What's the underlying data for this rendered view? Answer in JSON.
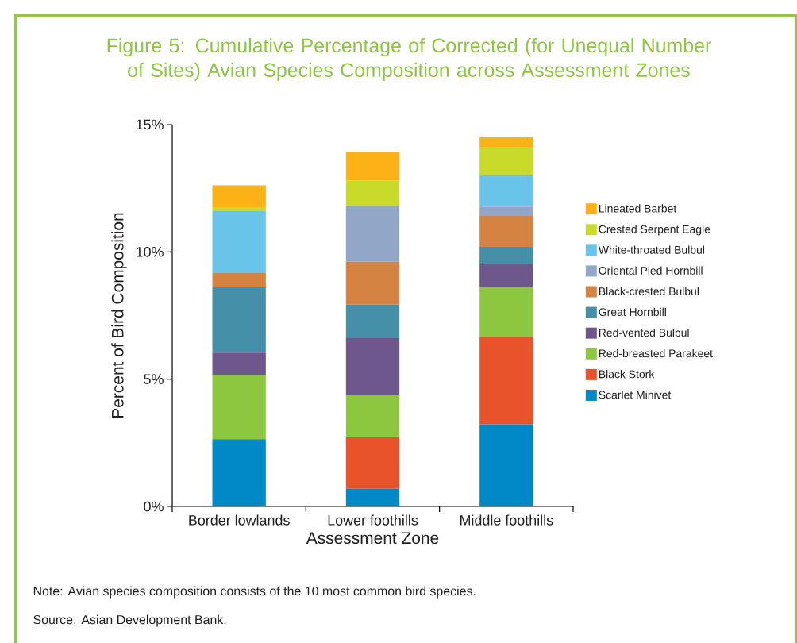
{
  "chart_data": {
    "type": "bar",
    "stacked": true,
    "title": "Figure 5: Cumulative Percentage of Corrected (for Unequal Number of Sites) Avian Species Composition across Assessment Zones",
    "xlabel": "Assessment Zone",
    "ylabel": "Percent of Bird Composition",
    "categories": [
      "Border lowlands",
      "Lower foothills",
      "Middle foothills"
    ],
    "ylim": [
      0,
      15
    ],
    "yticks": [
      {
        "value": 0,
        "label": "0%"
      },
      {
        "value": 5,
        "label": "5%"
      },
      {
        "value": 10,
        "label": "10%"
      },
      {
        "value": 15,
        "label": "15%"
      }
    ],
    "grid": false,
    "legend": "right",
    "series": [
      {
        "name": "Scarlet Minivet",
        "color": "#0088c7",
        "values": [
          2.64,
          0.69,
          3.23
        ]
      },
      {
        "name": "Black Stork",
        "color": "#e9532b",
        "values": [
          0,
          2.02,
          3.44
        ]
      },
      {
        "name": "Red-breasted Parakeet",
        "color": "#8dc63f",
        "values": [
          2.54,
          1.67,
          1.95
        ]
      },
      {
        "name": "Red-vented Bulbul",
        "color": "#6d578b",
        "values": [
          0.86,
          2.23,
          0.91
        ]
      },
      {
        "name": "Great Hornbill",
        "color": "#4590a8",
        "values": [
          2.58,
          1.32,
          0.67
        ]
      },
      {
        "name": "Black-crested Bulbul",
        "color": "#d58342",
        "values": [
          0.55,
          1.68,
          1.21
        ]
      },
      {
        "name": "Oriental Pied Hornbill",
        "color": "#92a6c8",
        "values": [
          0,
          2.2,
          0.37
        ]
      },
      {
        "name": "White-throated Bulbul",
        "color": "#69c4ea",
        "values": [
          2.45,
          0,
          1.23
        ]
      },
      {
        "name": "Crested Serpent Eagle",
        "color": "#c9da2b",
        "values": [
          0.14,
          0.99,
          1.12
        ]
      },
      {
        "name": "Lineated Barbet",
        "color": "#fcb216",
        "values": [
          0.85,
          1.14,
          0.37
        ]
      }
    ],
    "annotations": [
      "Note: Avian species composition consists of the 10 most common bird species.",
      "Source: Asian Development Bank."
    ]
  }
}
